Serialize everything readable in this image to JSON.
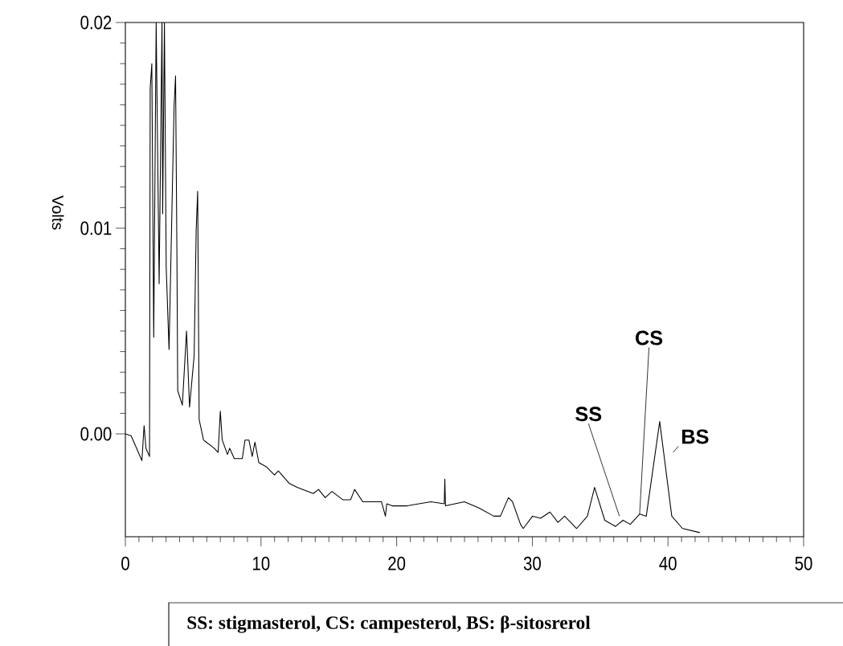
{
  "chart_data": {
    "type": "line",
    "ylabel": "Volts",
    "x": [
      0,
      0.43,
      1.22,
      1.38,
      1.52,
      1.78,
      1.83,
      1.95,
      2.09,
      2.27,
      2.49,
      2.7,
      2.75,
      2.88,
      3.01,
      3.22,
      3.59,
      3.7,
      3.8,
      3.86,
      4.2,
      4.51,
      4.73,
      5.07,
      5.22,
      5.33,
      5.44,
      5.76,
      6.55,
      6.84,
      7.0,
      7.14,
      7.53,
      7.69,
      8.03,
      8.62,
      8.82,
      9.11,
      9.35,
      9.55,
      9.84,
      10.39,
      10.99,
      11.28,
      12.07,
      12.66,
      13.85,
      14.24,
      14.73,
      15.23,
      16.02,
      16.61,
      16.9,
      17.5,
      18.88,
      19.17,
      19.27,
      19.67,
      20.75,
      22.52,
      23.51,
      23.55,
      23.6,
      24.99,
      26.07,
      27.16,
      27.65,
      28.24,
      28.54,
      29.13,
      29.33,
      30.02,
      30.61,
      31.3,
      31.89,
      32.38,
      33.27,
      34.06,
      34.59,
      35.34,
      36.13,
      36.69,
      37.22,
      37.91,
      38.4,
      39.39,
      40.28,
      41.07,
      42.35
    ],
    "values": [
      0,
      -0.0001,
      -0.0013,
      0.0004,
      -0.0007,
      -0.0011,
      0.0168,
      0.018,
      0.0047,
      0.02,
      0.0073,
      0.02,
      0.0107,
      0.02,
      0.0081,
      0.0041,
      0.0159,
      0.0174,
      0.0088,
      0.0021,
      0.0014,
      0.005,
      0.0013,
      0.0038,
      0.0099,
      0.0118,
      0.0007,
      -0.0003,
      -0.0007,
      -0.0009,
      0.0011,
      -0.0003,
      -0.001,
      -0.0007,
      -0.0012,
      -0.0012,
      -0.0003,
      -0.0003,
      -0.0011,
      -0.0004,
      -0.0014,
      -0.0016,
      -0.002,
      -0.0018,
      -0.0024,
      -0.0026,
      -0.0029,
      -0.0027,
      -0.0031,
      -0.0028,
      -0.0032,
      -0.0032,
      -0.0027,
      -0.0033,
      -0.0033,
      -0.004,
      -0.0034,
      -0.0035,
      -0.0035,
      -0.0033,
      -0.0034,
      -0.0022,
      -0.0035,
      -0.0033,
      -0.0036,
      -0.004,
      -0.004,
      -0.0031,
      -0.0033,
      -0.0044,
      -0.0046,
      -0.004,
      -0.0041,
      -0.0038,
      -0.0043,
      -0.004,
      -0.0046,
      -0.004,
      -0.0026,
      -0.0042,
      -0.0045,
      -0.0042,
      -0.0044,
      -0.0039,
      -0.004,
      0.0006,
      -0.004,
      -0.0046,
      -0.0048
    ],
    "color": "#000000",
    "marker": "none",
    "line_style": "solid",
    "xlim": [
      0,
      50
    ],
    "ylim": [
      -0.005,
      0.02
    ],
    "xticks": [
      0,
      10,
      20,
      30,
      40,
      50
    ],
    "yticks": [
      {
        "value": 0,
        "label": "0.00"
      },
      0.01,
      0.02
    ],
    "grid": false,
    "annotations": [
      {
        "text": "SS",
        "x": 36.69,
        "y": -0.0042
      },
      {
        "text": "CS",
        "x": 37.91,
        "y": -0.0039
      },
      {
        "text": "BS",
        "x": 39.39,
        "y": 0.0006
      },
      "SS: stigmasterol, CS: campesterol, BS: β-sitosrerol"
    ]
  }
}
